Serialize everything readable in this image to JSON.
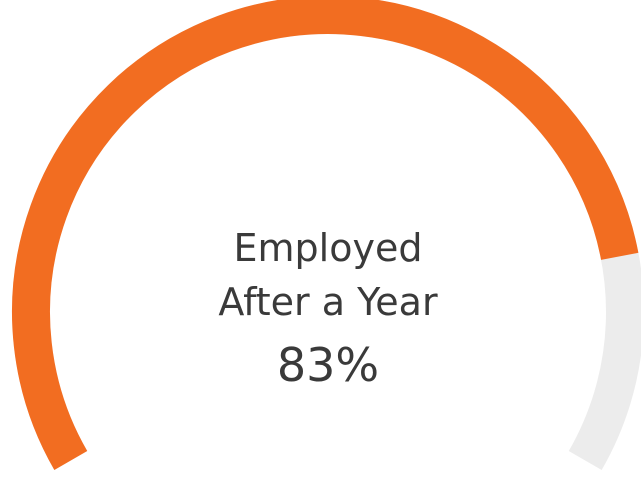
{
  "chart_data": {
    "type": "gauge",
    "label_lines": [
      "Employed",
      "After a Year"
    ],
    "value": 83,
    "value_label": "83%",
    "max": 100,
    "colors": {
      "fill": "#f26d21",
      "track": "#ececec"
    }
  }
}
